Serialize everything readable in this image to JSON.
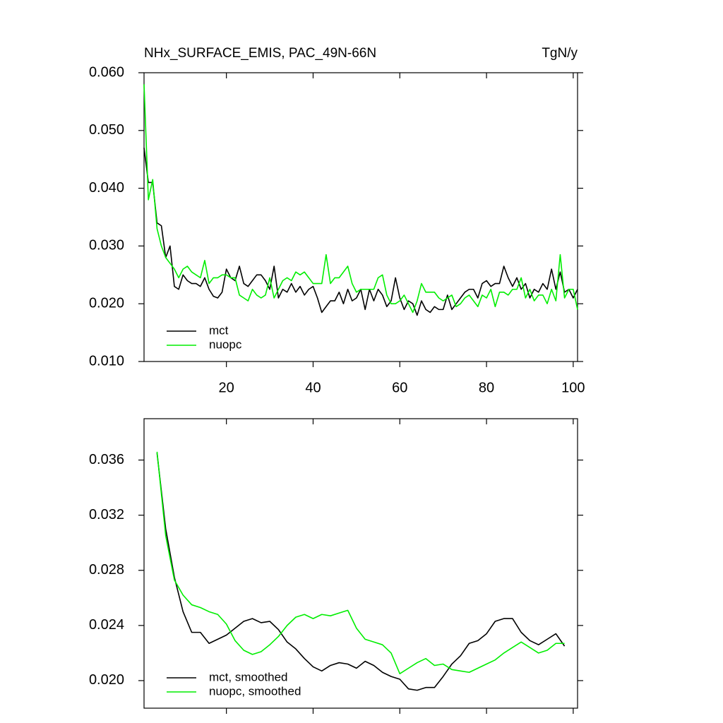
{
  "chart_data": [
    {
      "type": "line",
      "title": "NHx_SURFACE_EMIS, PAC_49N-66N",
      "right_title": "TgN/y",
      "x": [
        1,
        2,
        3,
        4,
        5,
        6,
        7,
        8,
        9,
        10,
        11,
        12,
        13,
        14,
        15,
        16,
        17,
        18,
        19,
        20,
        21,
        22,
        23,
        24,
        25,
        26,
        27,
        28,
        29,
        30,
        31,
        32,
        33,
        34,
        35,
        36,
        37,
        38,
        39,
        40,
        41,
        42,
        43,
        44,
        45,
        46,
        47,
        48,
        49,
        50,
        51,
        52,
        53,
        54,
        55,
        56,
        57,
        58,
        59,
        60,
        61,
        62,
        63,
        64,
        65,
        66,
        67,
        68,
        69,
        70,
        71,
        72,
        73,
        74,
        75,
        76,
        77,
        78,
        79,
        80,
        81,
        82,
        83,
        84,
        85,
        86,
        87,
        88,
        89,
        90,
        91,
        92,
        93,
        94,
        95,
        96,
        97,
        98,
        99,
        100,
        101
      ],
      "series": [
        {
          "name": "mct",
          "color": "#000000",
          "values": [
            0.047,
            0.041,
            0.041,
            0.034,
            0.0335,
            0.028,
            0.03,
            0.023,
            0.0225,
            0.025,
            0.024,
            0.0235,
            0.0235,
            0.023,
            0.0245,
            0.0225,
            0.0213,
            0.021,
            0.022,
            0.026,
            0.0245,
            0.024,
            0.0265,
            0.0235,
            0.023,
            0.024,
            0.025,
            0.025,
            0.024,
            0.0225,
            0.0265,
            0.021,
            0.0225,
            0.022,
            0.0235,
            0.022,
            0.023,
            0.0215,
            0.0225,
            0.023,
            0.021,
            0.0185,
            0.0195,
            0.0205,
            0.0205,
            0.022,
            0.02,
            0.0225,
            0.0205,
            0.021,
            0.0225,
            0.019,
            0.0225,
            0.0205,
            0.0225,
            0.0215,
            0.0195,
            0.0205,
            0.0245,
            0.021,
            0.019,
            0.0205,
            0.02,
            0.018,
            0.0205,
            0.019,
            0.0185,
            0.0195,
            0.019,
            0.019,
            0.0215,
            0.019,
            0.02,
            0.021,
            0.022,
            0.0225,
            0.0225,
            0.021,
            0.0235,
            0.024,
            0.023,
            0.0235,
            0.0235,
            0.0265,
            0.0245,
            0.023,
            0.0245,
            0.0225,
            0.0235,
            0.021,
            0.0225,
            0.022,
            0.0235,
            0.0225,
            0.026,
            0.0225,
            0.0255,
            0.022,
            0.0225,
            0.021,
            0.0225
          ]
        },
        {
          "name": "nuopc",
          "color": "#00ee00",
          "values": [
            0.058,
            0.038,
            0.0415,
            0.033,
            0.03,
            0.028,
            0.027,
            0.026,
            0.0245,
            0.026,
            0.0265,
            0.0255,
            0.025,
            0.0245,
            0.0275,
            0.0235,
            0.0245,
            0.0245,
            0.025,
            0.025,
            0.0245,
            0.0245,
            0.0215,
            0.021,
            0.0205,
            0.0225,
            0.0215,
            0.021,
            0.0215,
            0.0245,
            0.021,
            0.0225,
            0.024,
            0.0245,
            0.024,
            0.0255,
            0.025,
            0.0255,
            0.0245,
            0.0235,
            0.0235,
            0.0235,
            0.0285,
            0.0235,
            0.0245,
            0.0245,
            0.0255,
            0.0265,
            0.0235,
            0.022,
            0.0225,
            0.0225,
            0.0225,
            0.0225,
            0.0245,
            0.025,
            0.0215,
            0.02,
            0.02,
            0.0205,
            0.0215,
            0.02,
            0.0185,
            0.0205,
            0.0235,
            0.022,
            0.022,
            0.022,
            0.021,
            0.0205,
            0.021,
            0.0215,
            0.0195,
            0.02,
            0.021,
            0.0215,
            0.0205,
            0.0195,
            0.0215,
            0.021,
            0.0225,
            0.0195,
            0.022,
            0.022,
            0.0215,
            0.0225,
            0.0225,
            0.0245,
            0.021,
            0.0225,
            0.0205,
            0.0215,
            0.0215,
            0.02,
            0.0225,
            0.0205,
            0.0285,
            0.021,
            0.0225,
            0.0225,
            0.019
          ]
        }
      ],
      "xlim": [
        1,
        101
      ],
      "xticks": [
        20,
        40,
        60,
        80,
        100
      ],
      "ylim": [
        0.01,
        0.06
      ],
      "yticks": [
        {
          "value": 0.01,
          "label": "0.010"
        },
        {
          "value": 0.02,
          "label": "0.020"
        },
        {
          "value": 0.03,
          "label": "0.030"
        },
        {
          "value": 0.04,
          "label": "0.040"
        },
        {
          "value": 0.05,
          "label": "0.050"
        },
        {
          "value": 0.06,
          "label": "0.060"
        }
      ],
      "legend": "lower left"
    },
    {
      "type": "line",
      "x": [
        4,
        6,
        8,
        10,
        12,
        14,
        16,
        18,
        20,
        22,
        24,
        26,
        28,
        30,
        32,
        34,
        36,
        38,
        40,
        42,
        44,
        46,
        48,
        50,
        52,
        54,
        56,
        58,
        60,
        62,
        64,
        66,
        68,
        70,
        72,
        74,
        76,
        78,
        80,
        82,
        84,
        86,
        88,
        90,
        92,
        94,
        96,
        98
      ],
      "series": [
        {
          "name": "mct, smoothed",
          "color": "#000000",
          "values": [
            0.0365,
            0.031,
            0.0275,
            0.025,
            0.0235,
            0.0235,
            0.0227,
            0.023,
            0.0233,
            0.0238,
            0.0243,
            0.0245,
            0.0242,
            0.0243,
            0.0237,
            0.0228,
            0.0223,
            0.0216,
            0.021,
            0.0207,
            0.0211,
            0.0213,
            0.0212,
            0.0209,
            0.0214,
            0.0211,
            0.0206,
            0.0203,
            0.0201,
            0.0194,
            0.0193,
            0.0195,
            0.0195,
            0.0203,
            0.0212,
            0.0218,
            0.0227,
            0.0229,
            0.0234,
            0.0243,
            0.0245,
            0.0245,
            0.0235,
            0.0229,
            0.0226,
            0.023,
            0.0234,
            0.0225
          ]
        },
        {
          "name": "nuopc, smoothed",
          "color": "#00ee00",
          "values": [
            0.0366,
            0.0305,
            0.0273,
            0.0262,
            0.0255,
            0.0253,
            0.025,
            0.0248,
            0.0241,
            0.0229,
            0.0222,
            0.0219,
            0.0221,
            0.0226,
            0.0232,
            0.024,
            0.0246,
            0.0248,
            0.0245,
            0.0248,
            0.0247,
            0.0249,
            0.0251,
            0.0238,
            0.023,
            0.0228,
            0.0226,
            0.022,
            0.0205,
            0.0209,
            0.0213,
            0.0216,
            0.0211,
            0.0212,
            0.0208,
            0.0207,
            0.0206,
            0.0209,
            0.0212,
            0.0215,
            0.022,
            0.0224,
            0.0228,
            0.0224,
            0.022,
            0.0222,
            0.0227,
            0.0227
          ]
        }
      ],
      "xlim": [
        1,
        101
      ],
      "ylim": [
        0.018,
        0.039
      ],
      "yticks": [
        {
          "value": 0.02,
          "label": "0.020"
        },
        {
          "value": 0.024,
          "label": "0.024"
        },
        {
          "value": 0.028,
          "label": "0.028"
        },
        {
          "value": 0.032,
          "label": "0.032"
        },
        {
          "value": 0.036,
          "label": "0.036"
        }
      ],
      "legend": "lower left"
    }
  ]
}
